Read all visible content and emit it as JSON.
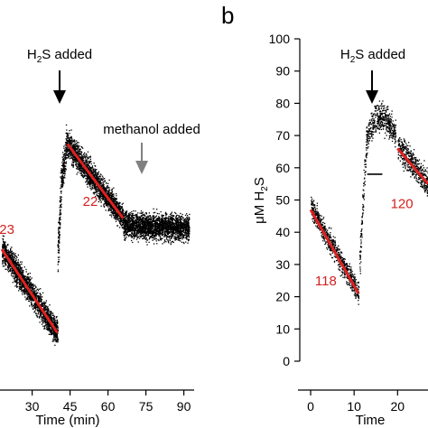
{
  "colors": {
    "points": "#000000",
    "fit": "#e02020",
    "rate_text": "#d42020",
    "arrow_black": "#000000",
    "arrow_gray": "#808080"
  },
  "chart_data": [
    {
      "panel": "a",
      "type": "scatter",
      "xlabel": "Time (min)",
      "x_ticks": [
        30,
        45,
        60,
        75,
        90
      ],
      "xlim": [
        18,
        93
      ],
      "ylim": [
        -5,
        105
      ],
      "annotations": [
        {
          "text": "H2S added",
          "at_x": 41,
          "arrow": "black"
        },
        {
          "text": "methanol added",
          "at_x": 70,
          "arrow": "gray"
        }
      ],
      "rate_labels": [
        {
          "text": "23",
          "x": 20,
          "y": 42
        },
        {
          "text": "22",
          "x": 53,
          "y": 51
        }
      ],
      "segments": [
        {
          "name": "before",
          "x_range": [
            18,
            40
          ],
          "y_start": 37,
          "y_end": 10,
          "noise": 3,
          "fit": {
            "x1": 18,
            "y1": 37,
            "x2": 40,
            "y2": 10
          }
        },
        {
          "name": "rise",
          "x_range": [
            40,
            41.5
          ],
          "y_start": 35,
          "y_end": 60,
          "noise": 5
        },
        {
          "name": "spike",
          "x_range": [
            41.5,
            44
          ],
          "y_start": 60,
          "y_end": 73,
          "noise": 4
        },
        {
          "name": "decay",
          "x_range": [
            44,
            66
          ],
          "y_start": 71,
          "y_end": 47,
          "noise": 3,
          "fit": {
            "x1": 44,
            "y1": 71,
            "x2": 66,
            "y2": 47
          }
        },
        {
          "name": "plateau",
          "x_range": [
            66,
            92
          ],
          "y_start": 45,
          "y_end": 44,
          "noise": 3
        }
      ]
    },
    {
      "panel": "b",
      "type": "scatter",
      "letter": "b",
      "ylabel": "μM H2S",
      "xlabel": "Time",
      "x_ticks": [
        0,
        10,
        20
      ],
      "y_ticks": [
        0,
        10,
        20,
        30,
        40,
        50,
        60,
        70,
        80,
        90,
        100
      ],
      "xlim": [
        -2.5,
        27
      ],
      "ylim": [
        0,
        100
      ],
      "annotations": [
        {
          "text": "H2S added",
          "at_x": 11.5,
          "arrow": "black"
        }
      ],
      "rate_labels": [
        {
          "text": "118",
          "x": 3.5,
          "y": 23.5
        },
        {
          "text": "120",
          "x": 21,
          "y": 47.5
        }
      ],
      "segments": [
        {
          "name": "before",
          "x_range": [
            0,
            11
          ],
          "y_start": 48,
          "y_end": 21,
          "noise": 2.5,
          "fit": {
            "x1": 0,
            "y1": 47,
            "x2": 11,
            "y2": 21
          }
        },
        {
          "name": "rise",
          "x_range": [
            11.2,
            12.8
          ],
          "y_start": 30,
          "y_end": 70,
          "noise": 4
        },
        {
          "name": "hump",
          "x_range": [
            12.8,
            19.5
          ],
          "y_start": 70,
          "y_end": 70,
          "noise": 3,
          "bump": 6
        },
        {
          "name": "after",
          "x_range": [
            20,
            27
          ],
          "y_start": 67,
          "y_end": 55,
          "noise": 3,
          "fit": {
            "x1": 20,
            "y1": 66,
            "x2": 27,
            "y2": 55
          }
        }
      ],
      "baseline_bar": {
        "x1": 13,
        "x2": 16.5,
        "y": 58
      }
    }
  ]
}
